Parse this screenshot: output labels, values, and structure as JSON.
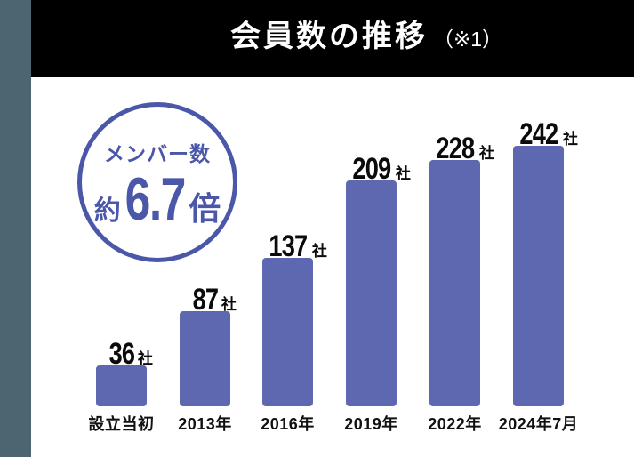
{
  "header": {
    "title": "会員数の推移",
    "note": "（※1）"
  },
  "badge": {
    "label": "メンバー数",
    "prefix": "約",
    "multiplier": "6.7",
    "suffix": "倍"
  },
  "chart_data": {
    "type": "bar",
    "title": "会員数の推移",
    "categories": [
      "設立当初",
      "2013年",
      "2016年",
      "2019年",
      "2022年",
      "2024年7月"
    ],
    "values": [
      36,
      87,
      137,
      209,
      228,
      242
    ],
    "unit": "社",
    "value_labels": [
      "36社",
      "87社",
      "137社",
      "209社",
      "228社",
      "242社"
    ],
    "xlabel": "",
    "ylabel": "",
    "ylim": [
      0,
      260
    ],
    "grid": false,
    "legend": false,
    "annotation": "メンバー数 約6.7倍"
  },
  "colors": {
    "frame": "#4C6570",
    "header_bg": "#000000",
    "header_text": "#FFFFFF",
    "bar": "#5D68B1",
    "badge": "#4B57A9",
    "background": "#FFFFFF",
    "axis_text": "#111111"
  }
}
